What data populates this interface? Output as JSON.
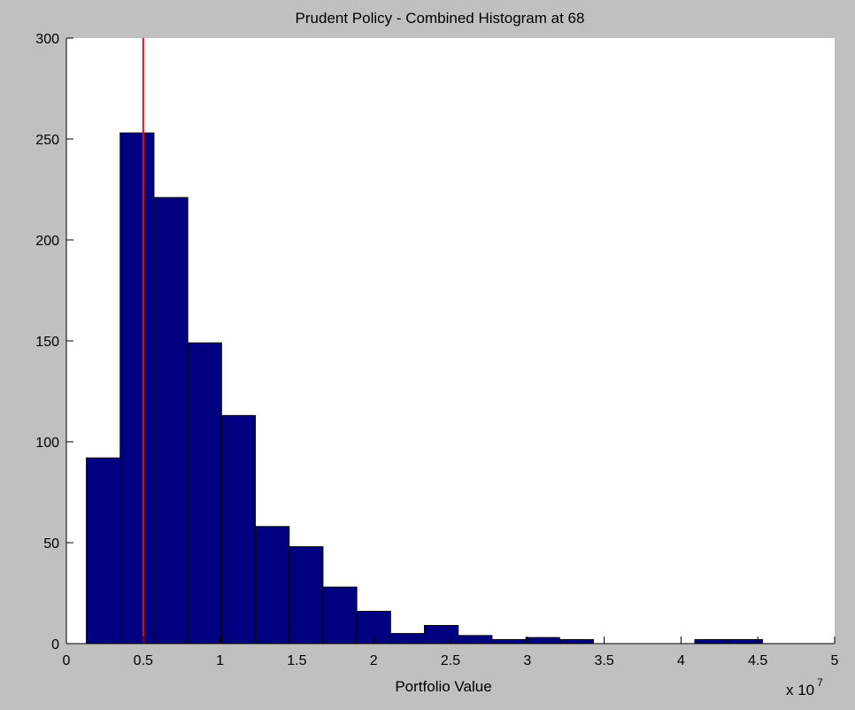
{
  "chart_data": {
    "type": "bar",
    "title": "Prudent Policy - Combined Histogram at 68",
    "xlabel": "Portfolio Value",
    "ylabel": "",
    "x_multiplier": {
      "base": "x 10",
      "exponent": "7"
    },
    "xlim": [
      0,
      5
    ],
    "ylim": [
      0,
      300
    ],
    "x_ticks": [
      "0",
      "0.5",
      "1",
      "1.5",
      "2",
      "2.5",
      "3",
      "3.5",
      "4",
      "4.5",
      "5"
    ],
    "y_ticks": [
      "0",
      "50",
      "100",
      "150",
      "200",
      "250",
      "300"
    ],
    "bin_width": 0.22,
    "bins": [
      {
        "center": 0.24,
        "count": 92
      },
      {
        "center": 0.46,
        "count": 253
      },
      {
        "center": 0.68,
        "count": 221
      },
      {
        "center": 0.9,
        "count": 149
      },
      {
        "center": 1.12,
        "count": 113
      },
      {
        "center": 1.34,
        "count": 58
      },
      {
        "center": 1.56,
        "count": 48
      },
      {
        "center": 1.78,
        "count": 28
      },
      {
        "center": 2.0,
        "count": 16
      },
      {
        "center": 2.22,
        "count": 5
      },
      {
        "center": 2.44,
        "count": 9
      },
      {
        "center": 2.66,
        "count": 4
      },
      {
        "center": 2.88,
        "count": 2
      },
      {
        "center": 3.1,
        "count": 3
      },
      {
        "center": 3.32,
        "count": 2
      },
      {
        "center": 3.54,
        "count": 0
      },
      {
        "center": 3.76,
        "count": 0
      },
      {
        "center": 3.98,
        "count": 0
      },
      {
        "center": 4.2,
        "count": 2
      },
      {
        "center": 4.42,
        "count": 2
      }
    ],
    "reference_line": {
      "x": 0.5,
      "color": "#ff0000"
    },
    "colors": {
      "bar_fill": "#000080",
      "bar_edge": "#000000",
      "figure_bg": "#c0c0c0",
      "axes_bg": "#ffffff"
    },
    "grid": false
  }
}
